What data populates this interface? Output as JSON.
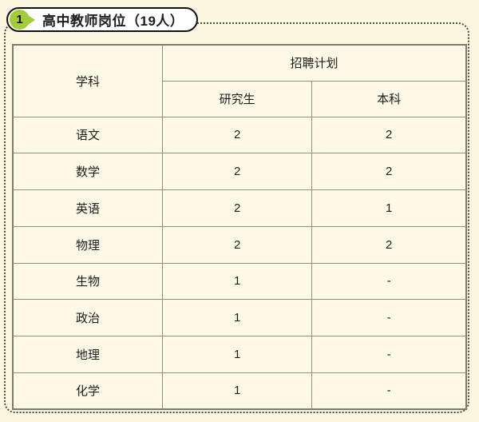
{
  "colors": {
    "page_background": "#fbf6e0",
    "cell_background": "#fdf9e6",
    "badge_green": "#a3cb3a",
    "table_border": "#8f8f7e",
    "dotted_border": "#4b4b42",
    "text": "#1c1c1c"
  },
  "section": {
    "badge_number": "1",
    "title": "高中教师岗位（19人）"
  },
  "table": {
    "header": {
      "subject": "学科",
      "plan_group": "招聘计划",
      "col_graduate": "研究生",
      "col_undergraduate": "本科"
    },
    "rows": [
      {
        "subject": "语文",
        "graduate": "2",
        "undergraduate": "2"
      },
      {
        "subject": "数学",
        "graduate": "2",
        "undergraduate": "2"
      },
      {
        "subject": "英语",
        "graduate": "2",
        "undergraduate": "1"
      },
      {
        "subject": "物理",
        "graduate": "2",
        "undergraduate": "2"
      },
      {
        "subject": "生物",
        "graduate": "1",
        "undergraduate": "-"
      },
      {
        "subject": "政治",
        "graduate": "1",
        "undergraduate": "-"
      },
      {
        "subject": "地理",
        "graduate": "1",
        "undergraduate": "-"
      },
      {
        "subject": "化学",
        "graduate": "1",
        "undergraduate": "-"
      }
    ]
  }
}
